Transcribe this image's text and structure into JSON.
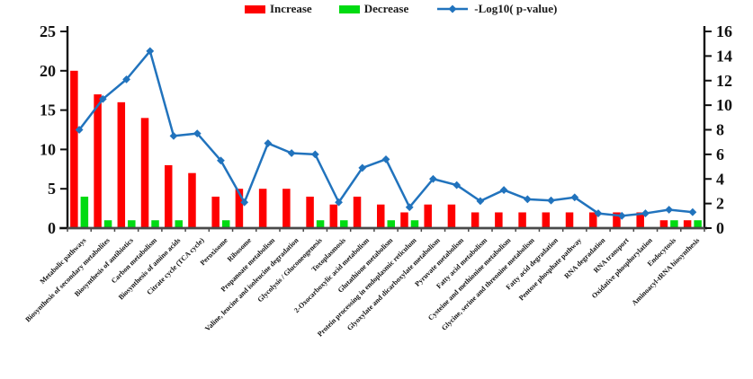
{
  "chart_data": {
    "type": "bar-line-combo",
    "categories": [
      "Metabolic pathways",
      "Biosynthesis of secondary metabolites",
      "Biosynthesis of antibiotics",
      "Carbon metabolism",
      "Biosynthesis of amino acids",
      "Citrate cycle (TCA cycle)",
      "Peroxisome",
      "Ribosome",
      "Propanoate metabolism",
      "Valine, leucine and isoleucine degradation",
      "Glycolysis / Gluconeogenesis",
      "Toxoplasmosis",
      "2-Oxocarboxylic acid metabolism",
      "Glutathione metabolism",
      "Protein processing in endoplasmic reticulum",
      "Glyoxylate and dicarboxylate metabolism",
      "Pyruvate metabolism",
      "Fatty acid metabolism",
      "Cysteine and methionine metabolism",
      "Glycine, serine and threonine metabolism",
      "Fatty acid degradation",
      "Pentose phosphate pathway",
      "RNA degradation",
      "RNA transport",
      "Oxidative phosphorylation",
      "Endocytosis",
      "Aminoacyl-tRNA biosynthesis"
    ],
    "series": [
      {
        "name": "Increase",
        "type": "bar",
        "axis": "left",
        "color": "#fe0000",
        "values": [
          20,
          17,
          16,
          14,
          8,
          7,
          4,
          5,
          5,
          5,
          4,
          3,
          4,
          3,
          2,
          3,
          3,
          2,
          2,
          2,
          2,
          2,
          2,
          2,
          2,
          1,
          1
        ]
      },
      {
        "name": "Decrease",
        "type": "bar",
        "axis": "left",
        "color": "#00db12",
        "values": [
          4,
          1,
          1,
          1,
          1,
          0,
          1,
          0,
          0,
          0,
          1,
          1,
          0,
          1,
          1,
          0,
          0,
          0,
          0,
          0,
          0,
          0,
          0,
          0,
          0,
          1,
          1
        ]
      },
      {
        "name": "-Log10( p-value)",
        "type": "line",
        "axis": "right",
        "color": "#2173bd",
        "values": [
          8.0,
          10.5,
          12.1,
          14.4,
          7.5,
          7.7,
          5.5,
          2.1,
          6.9,
          6.1,
          6.0,
          2.1,
          4.9,
          5.6,
          1.7,
          4.0,
          3.5,
          2.2,
          3.1,
          2.35,
          2.25,
          2.5,
          1.2,
          1.0,
          1.2,
          1.5,
          1.3
        ]
      }
    ],
    "left_axis": {
      "min": 0,
      "max": 25,
      "step": 5,
      "ticks": [
        0,
        5,
        10,
        15,
        20,
        25
      ]
    },
    "right_axis": {
      "min": 0,
      "max": 16,
      "step": 2,
      "ticks": [
        0,
        2,
        4,
        6,
        8,
        10,
        12,
        14,
        16
      ]
    },
    "grid": false,
    "legend_position": "top",
    "x_labels_rotation_deg": -45,
    "axis_color": "#111111",
    "x_axis_color": "#4a4a4a"
  }
}
